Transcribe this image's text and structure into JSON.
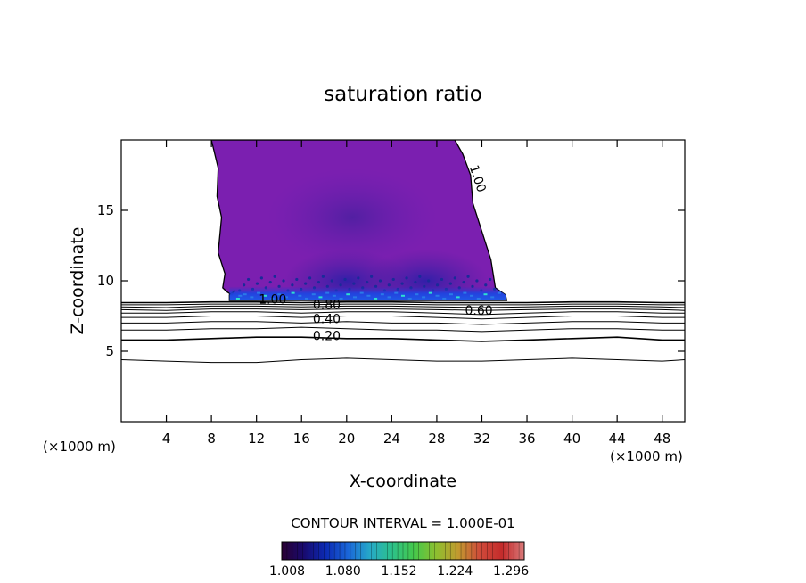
{
  "chart_data": {
    "type": "contour",
    "title": "saturation ratio",
    "xlabel": "X-coordinate",
    "ylabel": "Z-coordinate",
    "x_unit_left": "(×1000 m)",
    "x_unit_right": "(×1000 m)",
    "xlim": [
      0,
      50
    ],
    "ylim": [
      0,
      20
    ],
    "x_ticks": [
      4,
      8,
      12,
      16,
      20,
      24,
      28,
      32,
      36,
      40,
      44,
      48
    ],
    "y_ticks": [
      5,
      10,
      15
    ],
    "contour_interval_text": "CONTOUR INTERVAL = 1.000E-01",
    "contour_labels": [
      {
        "text": "1.00",
        "x": 30.9,
        "z": 18.1
      },
      {
        "text": "1.00",
        "x": 12.2,
        "z": 8.4
      },
      {
        "text": "0.80",
        "x": 17.0,
        "z": 8.0
      },
      {
        "text": "0.60",
        "x": 30.5,
        "z": 7.6
      },
      {
        "text": "0.40",
        "x": 17.0,
        "z": 7.0
      },
      {
        "text": "0.20",
        "x": 17.0,
        "z": 5.8
      }
    ],
    "contour_lines": [
      {
        "level": 0.1,
        "x": [
          0,
          4,
          8,
          12,
          16,
          20,
          24,
          28,
          32,
          36,
          40,
          44,
          48,
          50
        ],
        "z": [
          4.4,
          4.3,
          4.2,
          4.2,
          4.4,
          4.5,
          4.4,
          4.3,
          4.3,
          4.4,
          4.5,
          4.4,
          4.3,
          4.4
        ]
      },
      {
        "level": 0.2,
        "x": [
          0,
          4,
          8,
          12,
          16,
          20,
          24,
          28,
          32,
          36,
          40,
          44,
          48,
          50
        ],
        "z": [
          5.8,
          5.8,
          5.9,
          6.0,
          6.0,
          5.9,
          5.9,
          5.8,
          5.7,
          5.8,
          5.9,
          6.0,
          5.8,
          5.8
        ]
      },
      {
        "level": 0.3,
        "x": [
          0,
          4,
          8,
          12,
          16,
          20,
          24,
          28,
          32,
          36,
          40,
          44,
          48,
          50
        ],
        "z": [
          6.5,
          6.5,
          6.6,
          6.6,
          6.7,
          6.6,
          6.5,
          6.5,
          6.4,
          6.5,
          6.6,
          6.6,
          6.5,
          6.5
        ]
      },
      {
        "level": 0.4,
        "x": [
          0,
          4,
          8,
          12,
          16,
          20,
          24,
          28,
          32,
          36,
          40,
          44,
          48,
          50
        ],
        "z": [
          7.0,
          7.0,
          7.1,
          7.1,
          7.0,
          7.1,
          7.0,
          7.0,
          6.9,
          7.0,
          7.1,
          7.1,
          7.0,
          7.0
        ]
      },
      {
        "level": 0.5,
        "x": [
          0,
          4,
          8,
          12,
          16,
          20,
          24,
          28,
          32,
          36,
          40,
          44,
          48,
          50
        ],
        "z": [
          7.4,
          7.4,
          7.5,
          7.5,
          7.4,
          7.5,
          7.5,
          7.4,
          7.3,
          7.4,
          7.5,
          7.5,
          7.4,
          7.4
        ]
      },
      {
        "level": 0.6,
        "x": [
          0,
          4,
          8,
          12,
          16,
          20,
          24,
          28,
          32,
          36,
          40,
          44,
          48,
          50
        ],
        "z": [
          7.7,
          7.7,
          7.8,
          7.8,
          7.7,
          7.8,
          7.8,
          7.7,
          7.6,
          7.7,
          7.8,
          7.8,
          7.7,
          7.7
        ]
      },
      {
        "level": 0.7,
        "x": [
          0,
          4,
          8,
          12,
          16,
          20,
          24,
          28,
          32,
          36,
          40,
          44,
          48,
          50
        ],
        "z": [
          7.95,
          7.9,
          8.0,
          8.0,
          7.95,
          8.0,
          8.0,
          7.95,
          7.9,
          7.95,
          8.0,
          8.0,
          7.95,
          7.9
        ]
      },
      {
        "level": 0.8,
        "x": [
          0,
          4,
          8,
          12,
          16,
          20,
          24,
          28,
          32,
          36,
          40,
          44,
          48,
          50
        ],
        "z": [
          8.15,
          8.1,
          8.2,
          8.2,
          8.15,
          8.2,
          8.2,
          8.15,
          8.1,
          8.15,
          8.2,
          8.2,
          8.15,
          8.1
        ]
      },
      {
        "level": 0.9,
        "x": [
          0,
          4,
          8,
          12,
          16,
          20,
          24,
          28,
          32,
          36,
          40,
          44,
          48,
          50
        ],
        "z": [
          8.3,
          8.3,
          8.35,
          8.35,
          8.3,
          8.35,
          8.35,
          8.3,
          8.3,
          8.3,
          8.35,
          8.35,
          8.3,
          8.3
        ]
      },
      {
        "level": 1.0,
        "x": [
          0,
          4,
          8,
          12,
          16,
          20,
          24,
          28,
          32,
          36,
          40,
          44,
          48,
          50
        ],
        "z": [
          8.45,
          8.45,
          8.5,
          8.5,
          8.45,
          8.5,
          8.5,
          8.45,
          8.45,
          8.45,
          8.5,
          8.5,
          8.45,
          8.45
        ]
      }
    ],
    "supersaturated_region": {
      "outline_x": [
        8.0,
        8.6,
        8.5,
        8.9,
        8.6,
        9.2,
        9.0,
        9.4,
        9.8,
        10.1,
        9.6,
        9.6,
        34.2,
        34.1,
        33.2,
        32.8,
        32.0,
        31.2,
        31.0,
        30.3,
        29.6
      ],
      "outline_z": [
        20,
        18.0,
        16.0,
        14.5,
        12.0,
        10.5,
        9.5,
        9.2,
        9.0,
        9.3,
        9.0,
        8.6,
        8.6,
        9.0,
        9.5,
        11.5,
        13.5,
        15.5,
        17.5,
        19.0,
        20
      ],
      "base_value": 1.01,
      "core_values": [
        {
          "x": 20.5,
          "z": 14.5,
          "value": 1.03
        },
        {
          "x": 20.0,
          "z": 10.0,
          "value": 1.05
        },
        {
          "x": 27.0,
          "z": 10.0,
          "value": 1.05
        },
        {
          "x": 21.0,
          "z": 9.1,
          "value": 1.09
        }
      ]
    },
    "colorbar": {
      "min": 1.008,
      "max": 1.32,
      "tick_labels": [
        "1.008",
        "1.080",
        "1.152",
        "1.224",
        "1.296"
      ],
      "colors": [
        "#2a0033",
        "#180a6e",
        "#0c2bb5",
        "#1a66d9",
        "#26a9c8",
        "#2cc18a",
        "#45c84b",
        "#8dbf2f",
        "#c29a2f",
        "#cf4a3a",
        "#c42b2b",
        "#d97a7a"
      ]
    },
    "grid": false,
    "legend": "none"
  }
}
